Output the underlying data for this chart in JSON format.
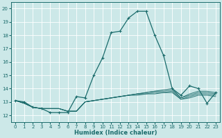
{
  "xlabel": "Humidex (Indice chaleur)",
  "xlim": [
    -0.5,
    23.5
  ],
  "ylim": [
    11.5,
    20.5
  ],
  "xticks": [
    0,
    1,
    2,
    3,
    4,
    5,
    6,
    7,
    8,
    9,
    10,
    11,
    12,
    13,
    14,
    15,
    16,
    17,
    18,
    19,
    20,
    21,
    22,
    23
  ],
  "yticks": [
    12,
    13,
    14,
    15,
    16,
    17,
    18,
    19,
    20
  ],
  "background_color": "#cce8e8",
  "grid_color": "#ffffff",
  "line_color": "#1a6b6b",
  "lines": [
    [
      13.1,
      13.0,
      12.6,
      12.5,
      12.2,
      12.2,
      12.2,
      13.4,
      13.3,
      15.0,
      16.3,
      18.2,
      18.3,
      19.3,
      19.8,
      19.8,
      18.0,
      16.5,
      14.0,
      13.5,
      14.2,
      14.0,
      12.9,
      13.7
    ],
    [
      13.1,
      12.9,
      12.6,
      12.5,
      12.5,
      12.5,
      12.3,
      12.3,
      13.0,
      13.1,
      13.2,
      13.3,
      13.4,
      13.5,
      13.6,
      13.7,
      13.8,
      13.9,
      14.0,
      13.3,
      13.6,
      13.8,
      13.8,
      13.7
    ],
    [
      13.1,
      12.9,
      12.6,
      12.5,
      12.5,
      12.5,
      12.3,
      12.3,
      13.0,
      13.1,
      13.2,
      13.3,
      13.4,
      13.5,
      13.6,
      13.7,
      13.8,
      13.8,
      13.9,
      13.3,
      13.5,
      13.7,
      13.7,
      13.6
    ],
    [
      13.1,
      12.9,
      12.6,
      12.5,
      12.5,
      12.5,
      12.3,
      12.3,
      13.0,
      13.1,
      13.2,
      13.3,
      13.4,
      13.5,
      13.6,
      13.6,
      13.7,
      13.7,
      13.8,
      13.2,
      13.4,
      13.6,
      13.6,
      13.5
    ],
    [
      13.1,
      12.9,
      12.6,
      12.5,
      12.5,
      12.5,
      12.3,
      12.3,
      13.0,
      13.1,
      13.2,
      13.3,
      13.4,
      13.5,
      13.5,
      13.6,
      13.6,
      13.7,
      13.7,
      13.2,
      13.3,
      13.5,
      13.5,
      13.4
    ]
  ],
  "marker_line_idx": 0,
  "title_fontsize": 6,
  "axis_fontsize": 6,
  "tick_fontsize": 5
}
